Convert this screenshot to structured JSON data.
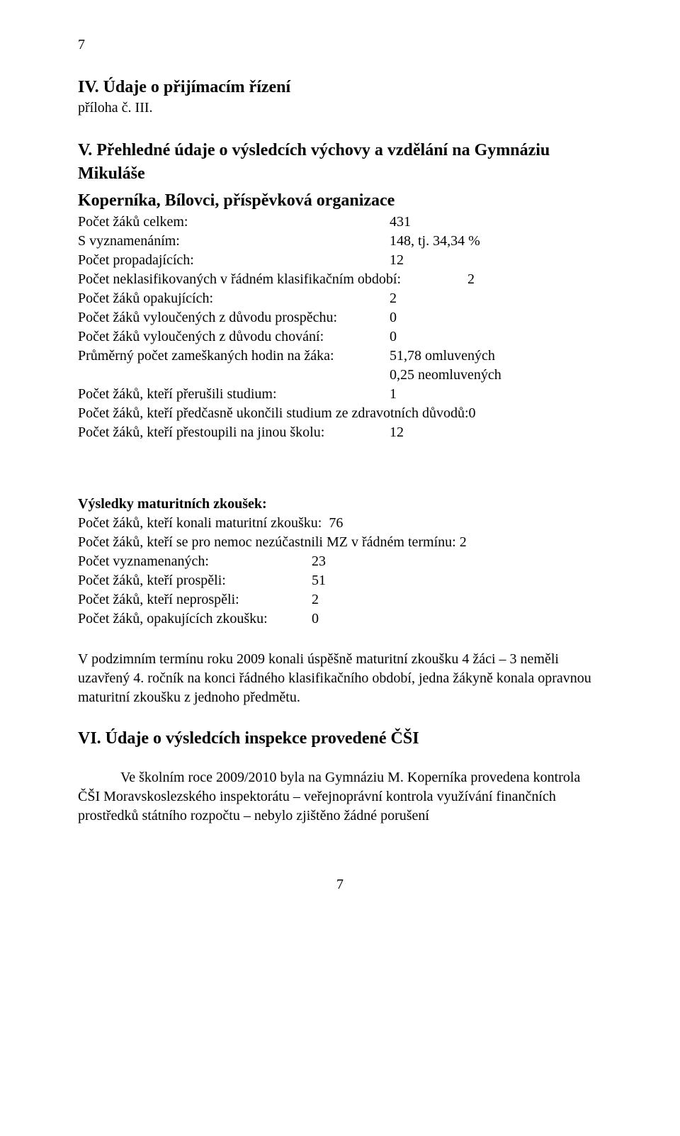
{
  "page": {
    "top_number": "7",
    "footer_number": "7"
  },
  "sec4": {
    "heading": "IV. Údaje o přijímacím řízení",
    "subnote": "příloha č. III."
  },
  "sec5": {
    "heading_line1": "V. Přehledné údaje o výsledcích výchovy a vzdělání na Gymnáziu Mikuláše",
    "heading_line2": "Koperníka, Bílovci, příspěvková organizace",
    "rows": {
      "r1_label": "Počet žáků celkem:",
      "r1_val": "431",
      "r2_label": "S vyznamenáním:",
      "r2_val": "148, tj. 34,34 %",
      "r3_label": "Počet propadajících:",
      "r3_val": "12",
      "r4_label": "Počet neklasifikovaných v řádném klasifikačním období:",
      "r4_val": "2",
      "r5_label": "Počet žáků opakujících:",
      "r5_val": "2",
      "r6_label": "Počet žáků vyloučených z důvodu prospěchu:",
      "r6_val": "0",
      "r7_label": "Počet žáků vyloučených z důvodu chování:",
      "r7_val": "0",
      "r8_label": "Průměrný počet zameškaných hodin na žáka:",
      "r8_val": "51,78 omluvených",
      "r8b_val": "0,25 neomluvených",
      "r9_label": "Počet žáků, kteří přerušili studium:",
      "r9_val": "1",
      "r10_text": "Počet žáků, kteří předčasně ukončili studium ze zdravotních důvodů:0",
      "r11_label": "Počet žáků, kteří přestoupili na jinou školu:",
      "r11_val": "12"
    }
  },
  "maturita": {
    "heading": "Výsledky maturitních zkoušek:",
    "r1": "Počet žáků, kteří konali maturitní zkoušku:  76",
    "r2": "Počet žáků, kteří se pro nemoc nezúčastnili MZ v řádném termínu: 2",
    "r3_label": "Počet vyznamenaných:",
    "r3_val": "23",
    "r4_label": "Počet žáků, kteří prospěli:",
    "r4_val": "51",
    "r5_label": "Počet žáků, kteří neprospěli:",
    "r5_val": "2",
    "r6_label": "Počet žáků, opakujících zkoušku:",
    "r6_val": "0"
  },
  "para_podzim": "V podzimním termínu roku 2009 konali úspěšně maturitní zkoušku 4 žáci – 3 neměli uzavřený 4. ročník na konci řádného klasifikačního období, jedna žákyně konala opravnou maturitní zkoušku z jednoho předmětu.",
  "sec6": {
    "heading": "VI. Údaje o výsledcích inspekce provedené ČŠI",
    "para": "Ve školním roce 2009/2010 byla na Gymnáziu M. Koperníka provedena kontrola ČŠI Moravskoslezského inspektorátu – veřejnoprávní kontrola využívání finančních prostředků státního rozpočtu – nebylo zjištěno žádné porušení"
  }
}
